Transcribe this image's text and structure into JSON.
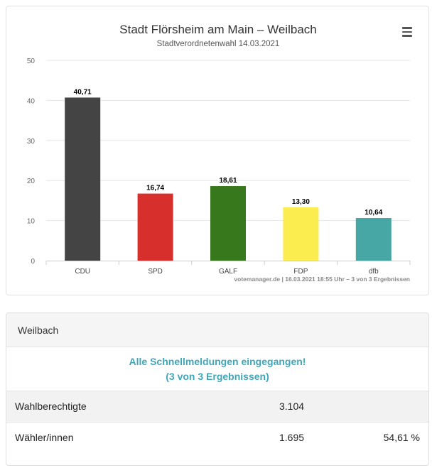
{
  "chart_data": {
    "type": "bar",
    "title": "Stadt Flörsheim am Main – Weilbach",
    "subtitle": "Stadtverordnetenwahl 14.03.2021",
    "categories": [
      "CDU",
      "SPD",
      "GALF",
      "FDP",
      "dfb"
    ],
    "values": [
      40.71,
      16.74,
      18.61,
      13.3,
      10.64
    ],
    "labels": [
      "40,71",
      "16,74",
      "18,61",
      "13,30",
      "10,64"
    ],
    "colors": [
      "#444444",
      "#d7302c",
      "#37781c",
      "#fbec4f",
      "#46a7a4"
    ],
    "yticks": [
      "0",
      "10",
      "20",
      "30",
      "40",
      "50"
    ],
    "ylim": [
      0,
      50
    ],
    "xlabel": "",
    "ylabel": "",
    "credit": "votemanager.de | 16.03.2021 18:55 Uhr – 3 von 3 Ergebnissen"
  },
  "menu": {
    "icon": "hamburger-icon"
  },
  "panel": {
    "header": "Weilbach",
    "notice_line1": "Alle Schnellmeldungen eingegangen!",
    "notice_line2": "(3 von 3 Ergebnissen)",
    "rows": [
      {
        "label": "Wahlberechtigte",
        "value": "3.104",
        "percent": ""
      },
      {
        "label": "Wähler/innen",
        "value": "1.695",
        "percent": "54,61 %"
      }
    ]
  }
}
